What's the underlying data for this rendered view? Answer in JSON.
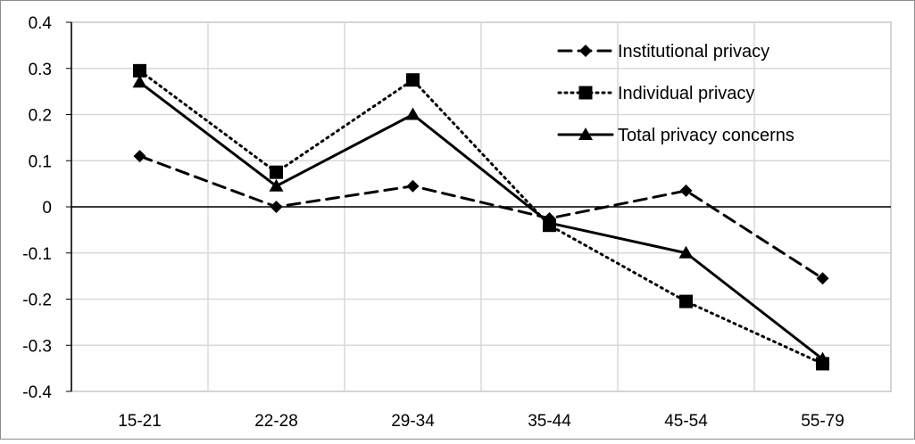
{
  "chart_data": {
    "type": "line",
    "title": "",
    "xlabel": "",
    "ylabel": "",
    "categories": [
      "15-21",
      "22-28",
      "29-34",
      "35-44",
      "45-54",
      "55-79"
    ],
    "ylim": [
      -0.4,
      0.4
    ],
    "yticks": [
      "0.4",
      "0.3",
      "0.2",
      "0.1",
      "0",
      "-0.1",
      "-0.2",
      "-0.3",
      "-0.4"
    ],
    "grid": true,
    "legend_position": "top-right",
    "series": [
      {
        "name": "Institutional privacy",
        "values": [
          0.11,
          0.0,
          0.045,
          -0.025,
          0.035,
          -0.155
        ],
        "line_style": "dashed",
        "marker": "diamond",
        "color": "#000000"
      },
      {
        "name": "Individual privacy",
        "values": [
          0.295,
          0.075,
          0.275,
          -0.04,
          -0.205,
          -0.34
        ],
        "line_style": "dotted",
        "marker": "square",
        "color": "#000000"
      },
      {
        "name": "Total privacy concerns",
        "values": [
          0.27,
          0.045,
          0.2,
          -0.035,
          -0.1,
          -0.33
        ],
        "line_style": "solid",
        "marker": "triangle",
        "color": "#000000"
      }
    ],
    "colors": {
      "grid": "#d9d9d9",
      "axis": "#000000",
      "frame": "#8c8c8c"
    }
  }
}
